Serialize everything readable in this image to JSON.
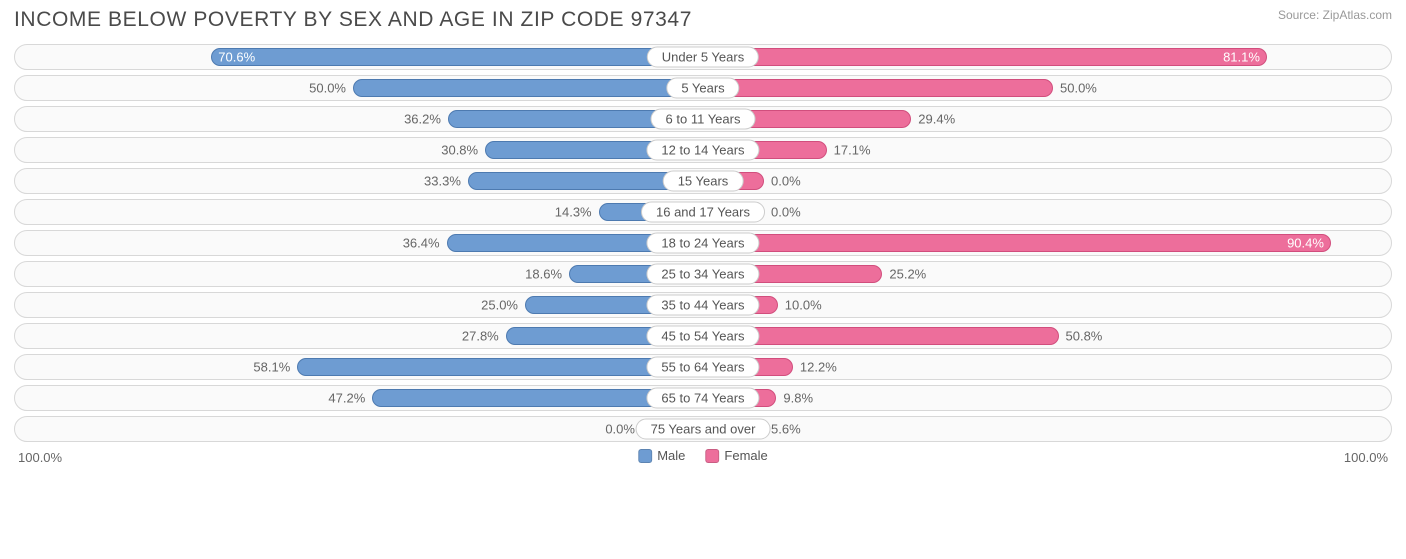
{
  "title": "INCOME BELOW POVERTY BY SEX AND AGE IN ZIP CODE 97347",
  "source": "Source: ZipAtlas.com",
  "colors": {
    "male_fill": "#6e9cd2",
    "male_border": "#4d7ab0",
    "female_fill": "#ed6e9b",
    "female_border": "#d14e7d",
    "row_bg": "#fafafa",
    "row_border": "#d8d8d8",
    "text": "#666666",
    "title_text": "#4a4a4a"
  },
  "axis": {
    "left": "100.0%",
    "right": "100.0%",
    "max": 100.0
  },
  "legend": {
    "male": "Male",
    "female": "Female"
  },
  "inside_threshold": 65,
  "min_bar_pct": 8,
  "rows": [
    {
      "label": "Under 5 Years",
      "male": 70.6,
      "female": 81.1
    },
    {
      "label": "5 Years",
      "male": 50.0,
      "female": 50.0
    },
    {
      "label": "6 to 11 Years",
      "male": 36.2,
      "female": 29.4
    },
    {
      "label": "12 to 14 Years",
      "male": 30.8,
      "female": 17.1
    },
    {
      "label": "15 Years",
      "male": 33.3,
      "female": 0.0
    },
    {
      "label": "16 and 17 Years",
      "male": 14.3,
      "female": 0.0
    },
    {
      "label": "18 to 24 Years",
      "male": 36.4,
      "female": 90.4
    },
    {
      "label": "25 to 34 Years",
      "male": 18.6,
      "female": 25.2
    },
    {
      "label": "35 to 44 Years",
      "male": 25.0,
      "female": 10.0
    },
    {
      "label": "45 to 54 Years",
      "male": 27.8,
      "female": 50.8
    },
    {
      "label": "55 to 64 Years",
      "male": 58.1,
      "female": 12.2
    },
    {
      "label": "65 to 74 Years",
      "male": 47.2,
      "female": 9.8
    },
    {
      "label": "75 Years and over",
      "male": 0.0,
      "female": 5.6
    }
  ]
}
